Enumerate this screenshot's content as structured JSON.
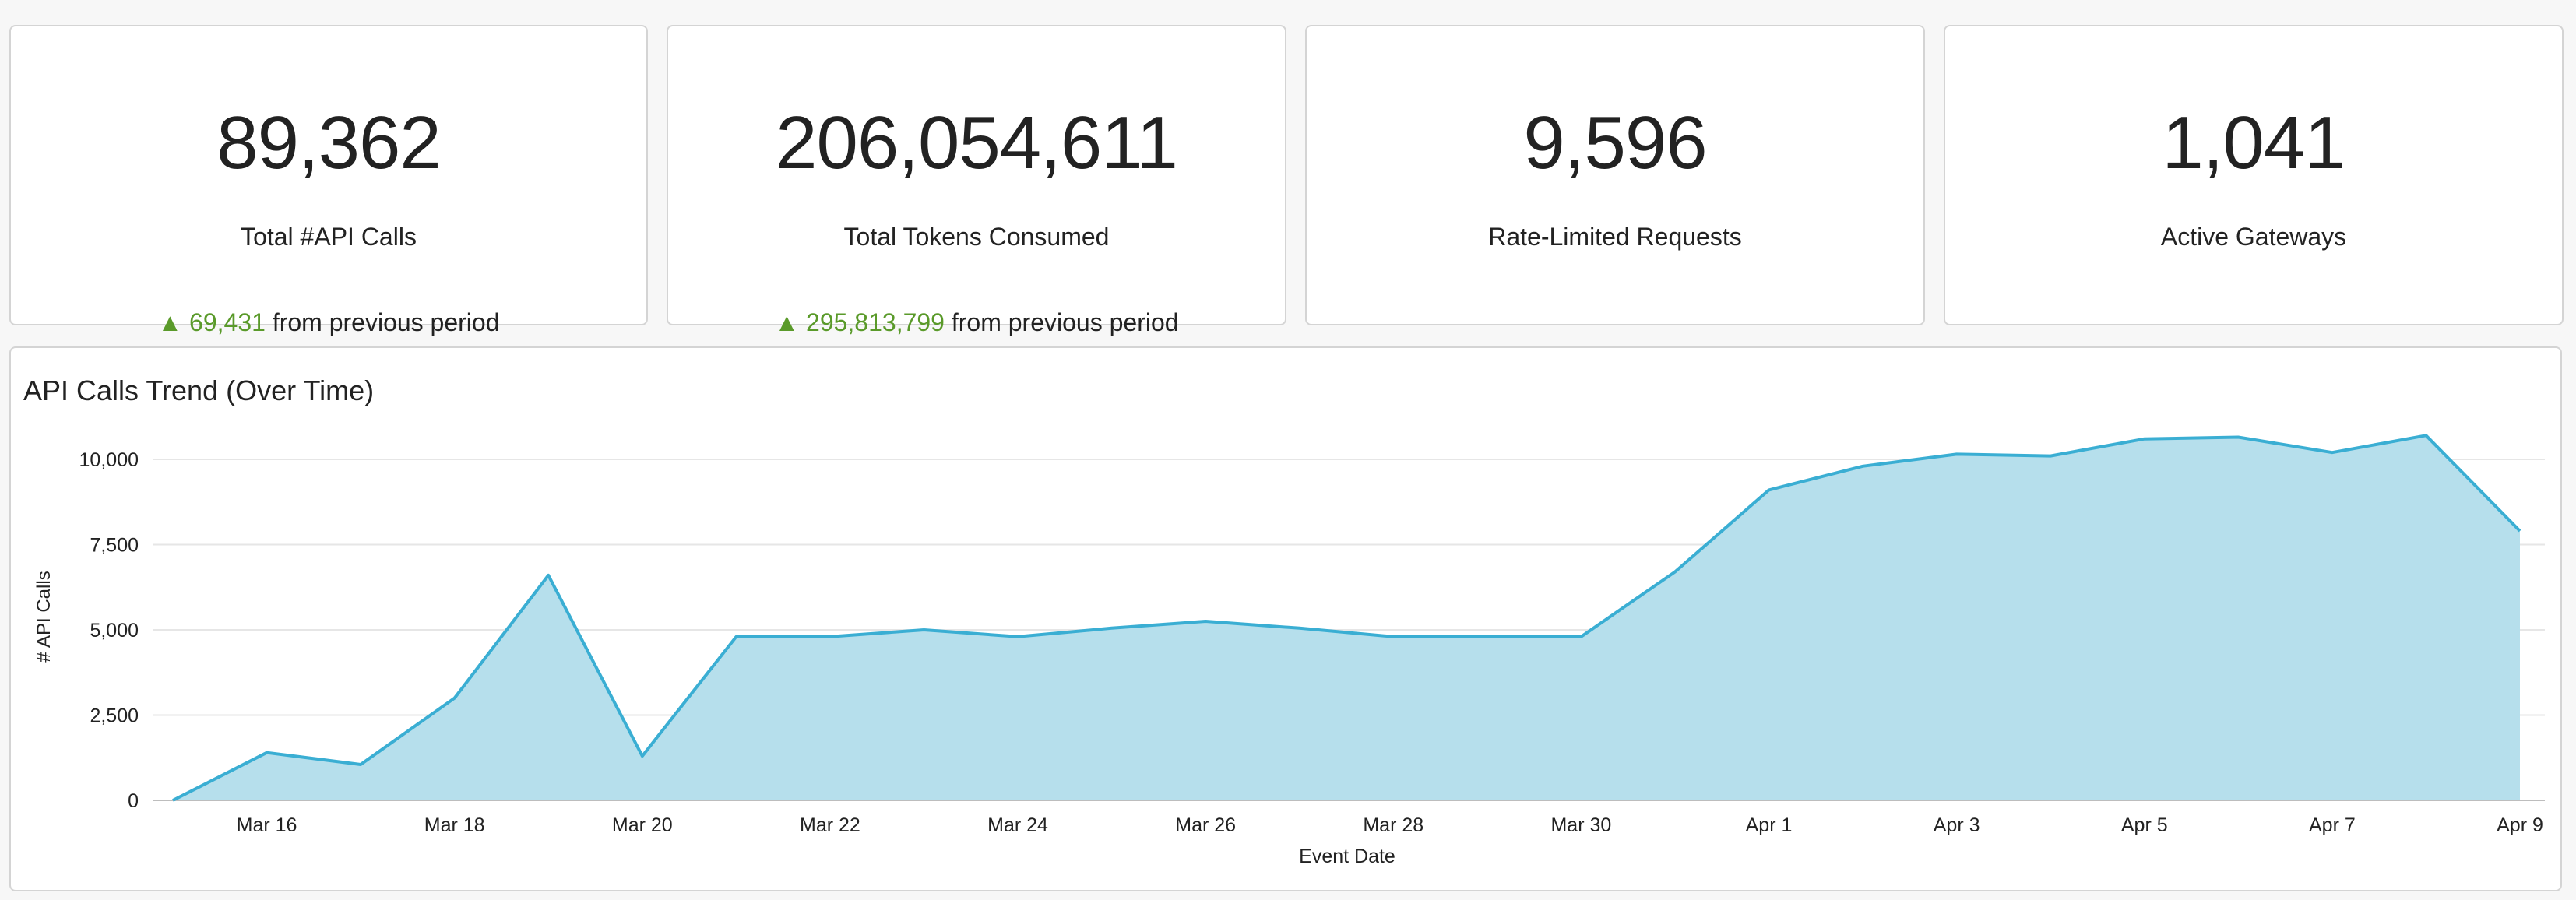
{
  "kpis": [
    {
      "value": "89,362",
      "label": "Total #API Calls",
      "delta_arrow": "▲",
      "delta_value": "69,431",
      "delta_text": "from previous period"
    },
    {
      "value": "206,054,611",
      "label": "Total Tokens Consumed",
      "delta_arrow": "▲",
      "delta_value": "295,813,799",
      "delta_text": "from previous period"
    },
    {
      "value": "9,596",
      "label": "Rate-Limited Requests"
    },
    {
      "value": "1,041",
      "label": "Active Gateways"
    }
  ],
  "colors": {
    "positive": "#5a9a2a",
    "series_line": "#3aaed3",
    "series_fill": "#b6dfec"
  },
  "chart_data": {
    "type": "area",
    "title": "API Calls Trend (Over Time)",
    "xlabel": "Event Date",
    "ylabel": "# API Calls",
    "ylim": [
      0,
      10000
    ],
    "yticks": [
      "0",
      "2,500",
      "5,000",
      "7,500",
      "10,000"
    ],
    "xtick_labels": [
      "Mar 16",
      "Mar 18",
      "Mar 20",
      "Mar 22",
      "Mar 24",
      "Mar 26",
      "Mar 28",
      "Mar 30",
      "Apr 1",
      "Apr 3",
      "Apr 5",
      "Apr 7",
      "Apr 9"
    ],
    "grid": true,
    "x": [
      "Mar 15",
      "Mar 16",
      "Mar 17",
      "Mar 18",
      "Mar 19",
      "Mar 20",
      "Mar 21",
      "Mar 22",
      "Mar 23",
      "Mar 24",
      "Mar 25",
      "Mar 26",
      "Mar 27",
      "Mar 28",
      "Mar 29",
      "Mar 30",
      "Mar 31",
      "Apr 1",
      "Apr 2",
      "Apr 3",
      "Apr 4",
      "Apr 5",
      "Apr 6",
      "Apr 7",
      "Apr 8",
      "Apr 9"
    ],
    "values": [
      0,
      1400,
      1050,
      3000,
      6600,
      1300,
      4800,
      4800,
      5000,
      4800,
      5050,
      5250,
      5050,
      4800,
      4800,
      4800,
      6700,
      9100,
      9800,
      10150,
      10100,
      10600,
      10650,
      10200,
      10700,
      7900
    ]
  }
}
